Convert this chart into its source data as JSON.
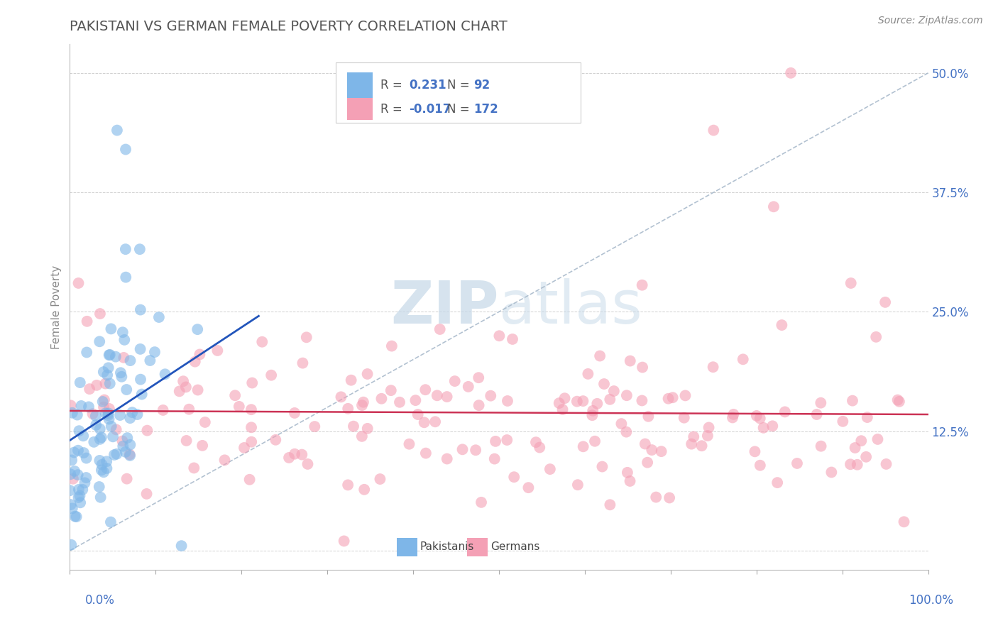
{
  "title": "PAKISTANI VS GERMAN FEMALE POVERTY CORRELATION CHART",
  "source": "Source: ZipAtlas.com",
  "ylabel": "Female Poverty",
  "yticks": [
    0.0,
    0.125,
    0.25,
    0.375,
    0.5
  ],
  "ytick_labels": [
    "",
    "12.5%",
    "25.0%",
    "37.5%",
    "50.0%"
  ],
  "xlim": [
    0.0,
    1.0
  ],
  "ylim": [
    -0.02,
    0.53
  ],
  "pakistani_color": "#7eb6e8",
  "german_color": "#f4a0b5",
  "pakistani_line_color": "#2255bb",
  "german_line_color": "#cc3355",
  "ref_line_color": "#aabbcc",
  "pakistani_R": 0.231,
  "pakistani_N": 92,
  "german_R": -0.017,
  "german_N": 172,
  "legend_text_color": "#4472c4",
  "legend_label_color": "#555555",
  "watermark_color": "#c5d8e8",
  "background_color": "#ffffff",
  "grid_color": "#d0d0d0",
  "title_color": "#555555",
  "title_fontsize": 14,
  "tick_color": "#4472c4",
  "ylabel_color": "#888888",
  "source_color": "#888888"
}
